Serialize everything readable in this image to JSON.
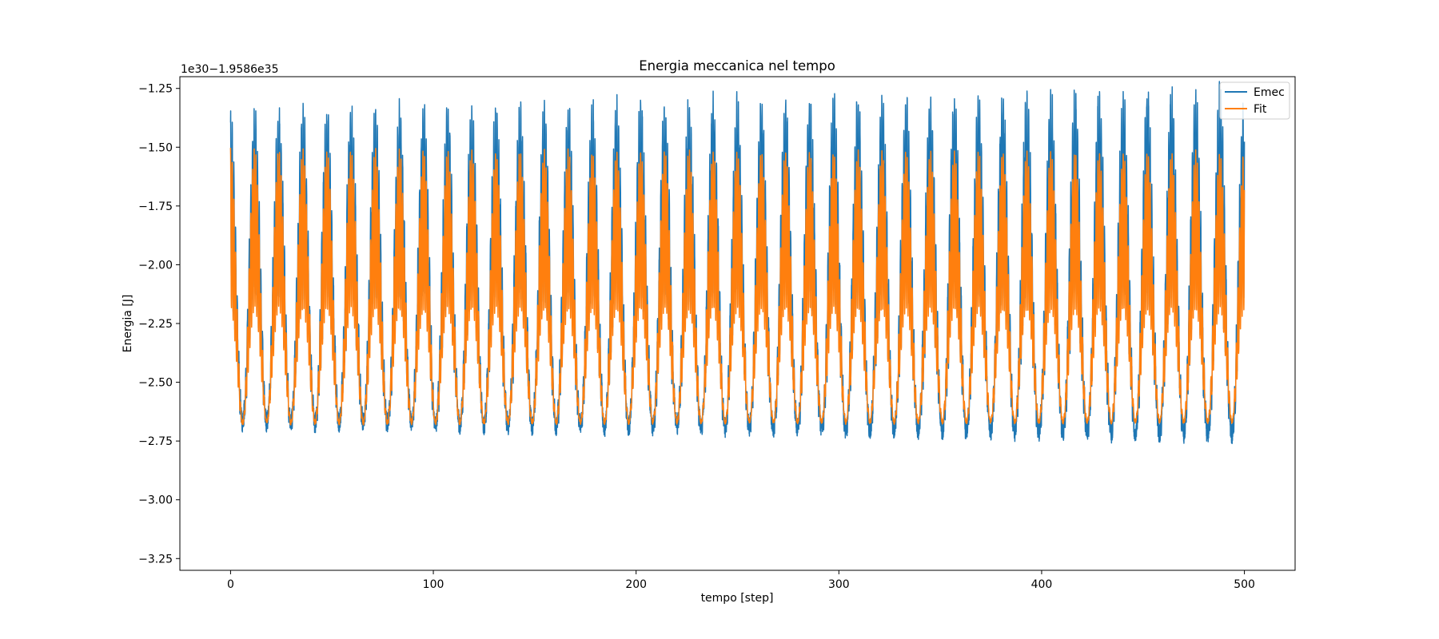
{
  "chart_data": {
    "type": "line",
    "title": "Energia meccanica nel tempo",
    "xlabel": "tempo [step]",
    "ylabel": "Energia [J]",
    "y_offset_text": "1e30−1.9586e35",
    "xlim": [
      -25,
      525
    ],
    "ylim": [
      -3.3,
      -1.2
    ],
    "x_ticks": [
      0,
      100,
      200,
      300,
      400,
      500
    ],
    "x_tick_labels": [
      "0",
      "100",
      "200",
      "300",
      "400",
      "500"
    ],
    "y_ticks": [
      -3.25,
      -3.0,
      -2.75,
      -2.5,
      -2.25,
      -2.0,
      -1.75,
      -1.5,
      -1.25
    ],
    "y_tick_labels": [
      "−3.25",
      "−3.00",
      "−2.75",
      "−2.50",
      "−2.25",
      "−2.00",
      "−1.75",
      "−1.50",
      "−1.25"
    ],
    "grid": false,
    "legend_position": "top-right",
    "x_range": [
      0,
      500
    ],
    "oscillation_period": 11.9,
    "series": [
      {
        "name": "Emec",
        "color": "#1f77b4",
        "center": -2.2,
        "half_amplitude_start": 0.85,
        "half_amplitude_end": 0.95,
        "inner_dip_depth": 0.32
      },
      {
        "name": "Fit",
        "color": "#ff7f0e",
        "center": -2.26,
        "half_amplitude_start": 0.75,
        "half_amplitude_end": 0.74,
        "inner_dip_depth": 0.42
      }
    ]
  }
}
